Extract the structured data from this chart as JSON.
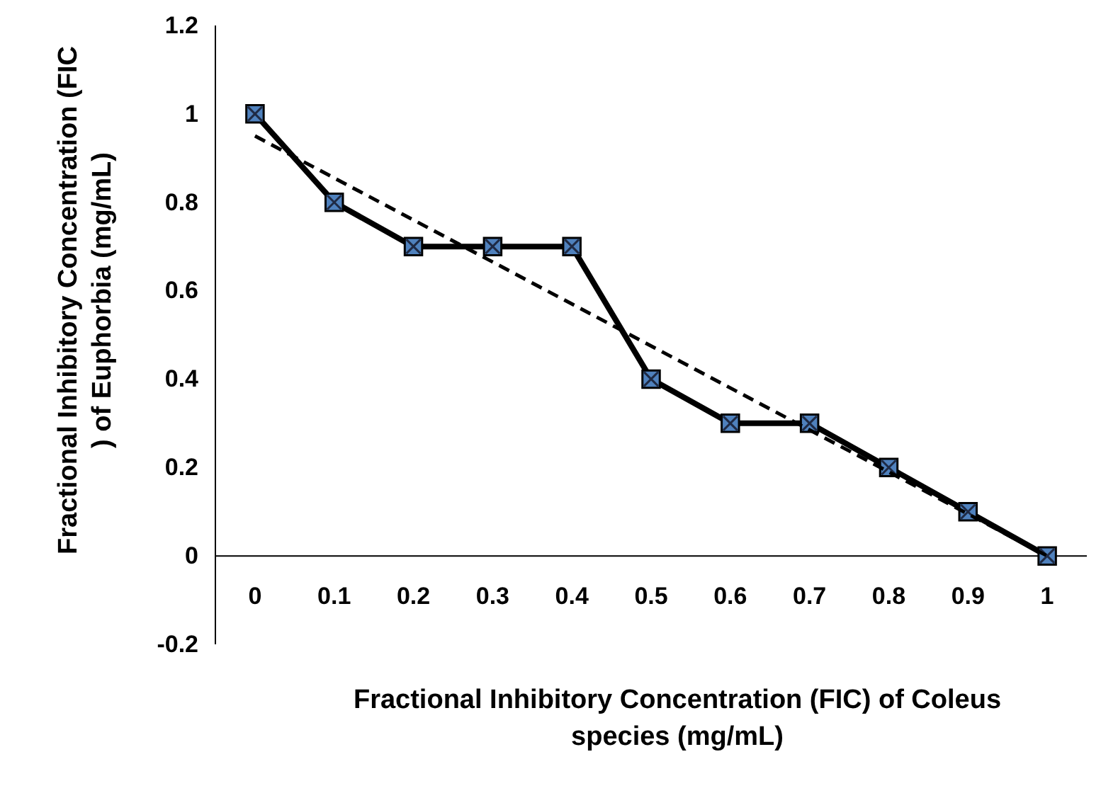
{
  "chart_data": {
    "type": "line",
    "xlabel": "Fractional Inhibitory Concentration (FIC) of Coleus species (mg/mL)",
    "ylabel": "Fractional Inhibitory Concentration (FIC ) of Euphorbia (mg/mL)",
    "categories": [
      "0",
      "0.1",
      "0.2",
      "0.3",
      "0.4",
      "0.5",
      "0.6",
      "0.7",
      "0.8",
      "0.9",
      "1"
    ],
    "series": [
      {
        "color": "#000000",
        "marker": "square",
        "line_style": "solid",
        "values": [
          1,
          0.8,
          0.7,
          0.7,
          0.7,
          0.4,
          0.3,
          0.3,
          0.2,
          0.1,
          0
        ]
      },
      {
        "color": "#000000",
        "line_style": "dashed",
        "x": [
          "0",
          "1"
        ],
        "values": [
          0.95,
          0
        ]
      }
    ],
    "ylim": [
      -0.2,
      1.2
    ],
    "yticks": [
      -0.2,
      0,
      0.2,
      0.4,
      0.6,
      0.8,
      1,
      1.2
    ],
    "grid": false
  }
}
